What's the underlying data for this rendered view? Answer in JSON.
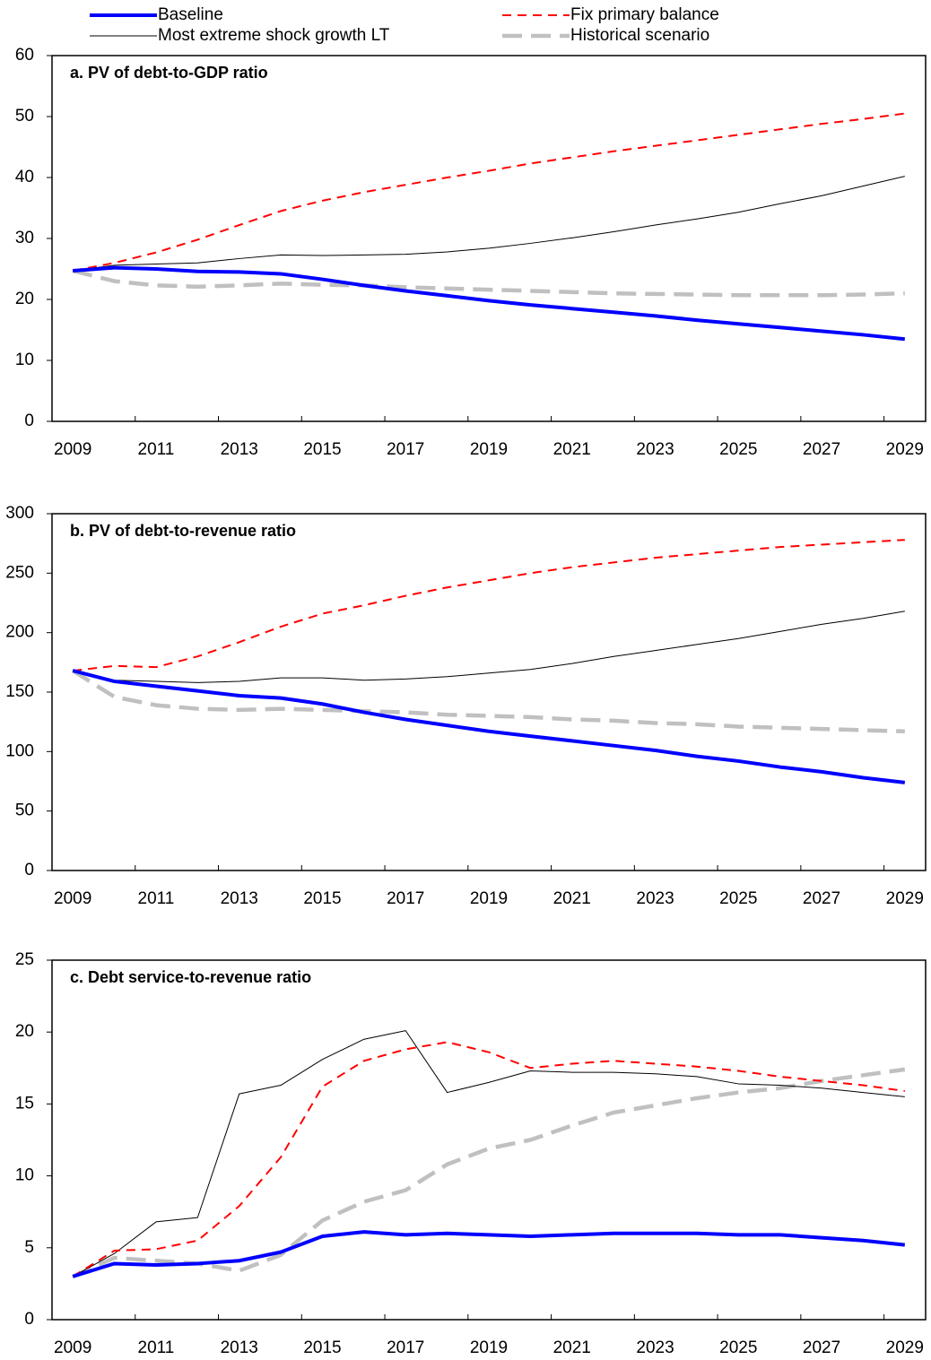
{
  "chart_data": [
    {
      "type": "line",
      "title": "a. PV of debt-to-GDP ratio",
      "categories": [
        "2009",
        null,
        "2011",
        null,
        "2013",
        null,
        "2015",
        null,
        "2017",
        null,
        "2019",
        null,
        "2021",
        null,
        "2023",
        null,
        "2025",
        null,
        "2027",
        null,
        "2029"
      ],
      "ylim": [
        0,
        60
      ],
      "yticks": [
        0,
        10,
        20,
        30,
        40,
        50,
        60
      ],
      "series": [
        {
          "name": "Baseline",
          "color": "#0000ff",
          "values": [
            24.7,
            25.2,
            25.0,
            24.6,
            24.5,
            24.2,
            23.3,
            22.3,
            21.4,
            20.6,
            19.8,
            19.1,
            18.5,
            17.9,
            17.3,
            16.6,
            16.0,
            15.4,
            14.8,
            14.2,
            13.5
          ]
        },
        {
          "name": "Fix primary balance",
          "color": "#ff0000",
          "values": [
            24.7,
            26.0,
            27.7,
            29.8,
            32.2,
            34.5,
            36.2,
            37.6,
            38.8,
            40.0,
            41.1,
            42.3,
            43.3,
            44.3,
            45.2,
            46.1,
            47.0,
            47.9,
            48.8,
            49.6,
            50.5
          ]
        },
        {
          "name": "Most extreme shock growth LT",
          "color": "#000000",
          "values": [
            24.7,
            25.6,
            25.8,
            26.0,
            26.7,
            27.3,
            27.2,
            27.3,
            27.4,
            27.8,
            28.4,
            29.2,
            30.1,
            31.1,
            32.2,
            33.2,
            34.3,
            35.7,
            37.0,
            38.6,
            40.2
          ]
        },
        {
          "name": "Historical scenario",
          "color": "#c0c0c0",
          "values": [
            24.7,
            23.0,
            22.3,
            22.1,
            22.3,
            22.6,
            22.4,
            22.3,
            22.0,
            21.8,
            21.6,
            21.4,
            21.2,
            21.0,
            20.9,
            20.8,
            20.7,
            20.7,
            20.7,
            20.8,
            21.0
          ]
        }
      ]
    },
    {
      "type": "line",
      "title": "b. PV of debt-to-revenue ratio",
      "categories": [
        "2009",
        null,
        "2011",
        null,
        "2013",
        null,
        "2015",
        null,
        "2017",
        null,
        "2019",
        null,
        "2021",
        null,
        "2023",
        null,
        "2025",
        null,
        "2027",
        null,
        "2029"
      ],
      "ylim": [
        0,
        300
      ],
      "yticks": [
        0,
        50,
        100,
        150,
        200,
        250,
        300
      ],
      "series": [
        {
          "color": "#0000ff",
          "values": [
            168,
            159,
            155,
            151,
            147,
            145,
            140,
            133,
            127,
            122,
            117,
            113,
            109,
            105,
            101,
            96,
            92,
            87,
            83,
            78,
            74
          ]
        },
        {
          "color": "#ff0000",
          "values": [
            168,
            172,
            171,
            180,
            192,
            205,
            216,
            223,
            231,
            238,
            244,
            250,
            255,
            259,
            263,
            266,
            269,
            272,
            274,
            276,
            278
          ]
        },
        {
          "color": "#000000",
          "values": [
            168,
            160,
            159,
            158,
            159,
            162,
            162,
            160,
            161,
            163,
            166,
            169,
            174,
            180,
            185,
            190,
            195,
            201,
            207,
            212,
            218
          ]
        },
        {
          "color": "#c0c0c0",
          "values": [
            168,
            146,
            139,
            136,
            135,
            136,
            135,
            134,
            133,
            131,
            130,
            129,
            127,
            126,
            124,
            123,
            121,
            120,
            119,
            118,
            117
          ]
        }
      ]
    },
    {
      "type": "line",
      "title": "c. Debt service-to-revenue ratio",
      "categories": [
        "2009",
        null,
        "2011",
        null,
        "2013",
        null,
        "2015",
        null,
        "2017",
        null,
        "2019",
        null,
        "2021",
        null,
        "2023",
        null,
        "2025",
        null,
        "2027",
        null,
        "2029"
      ],
      "ylim": [
        0,
        25
      ],
      "yticks": [
        0,
        5,
        10,
        15,
        20,
        25
      ],
      "series": [
        {
          "color": "#0000ff",
          "values": [
            3.0,
            3.9,
            3.8,
            3.9,
            4.1,
            4.7,
            5.8,
            6.1,
            5.9,
            6.0,
            5.9,
            5.8,
            5.9,
            6.0,
            6.0,
            6.0,
            5.9,
            5.9,
            5.7,
            5.5,
            5.2
          ]
        },
        {
          "color": "#ff0000",
          "values": [
            3.0,
            4.8,
            4.9,
            5.5,
            7.9,
            11.3,
            16.2,
            18.0,
            18.8,
            19.3,
            18.6,
            17.5,
            17.8,
            18.0,
            17.8,
            17.6,
            17.3,
            16.9,
            16.6,
            16.3,
            15.9
          ]
        },
        {
          "color": "#000000",
          "values": [
            3.0,
            4.6,
            6.8,
            7.1,
            15.7,
            16.3,
            18.1,
            19.5,
            20.1,
            15.8,
            16.5,
            17.3,
            17.2,
            17.2,
            17.1,
            16.9,
            16.4,
            16.3,
            16.1,
            15.8,
            15.5
          ]
        },
        {
          "color": "#c0c0c0",
          "values": [
            3.0,
            4.3,
            4.1,
            3.9,
            3.4,
            4.5,
            6.9,
            8.2,
            9.0,
            10.8,
            11.9,
            12.5,
            13.5,
            14.4,
            14.9,
            15.4,
            15.8,
            16.1,
            16.6,
            17.0,
            17.4
          ]
        }
      ]
    }
  ]
}
